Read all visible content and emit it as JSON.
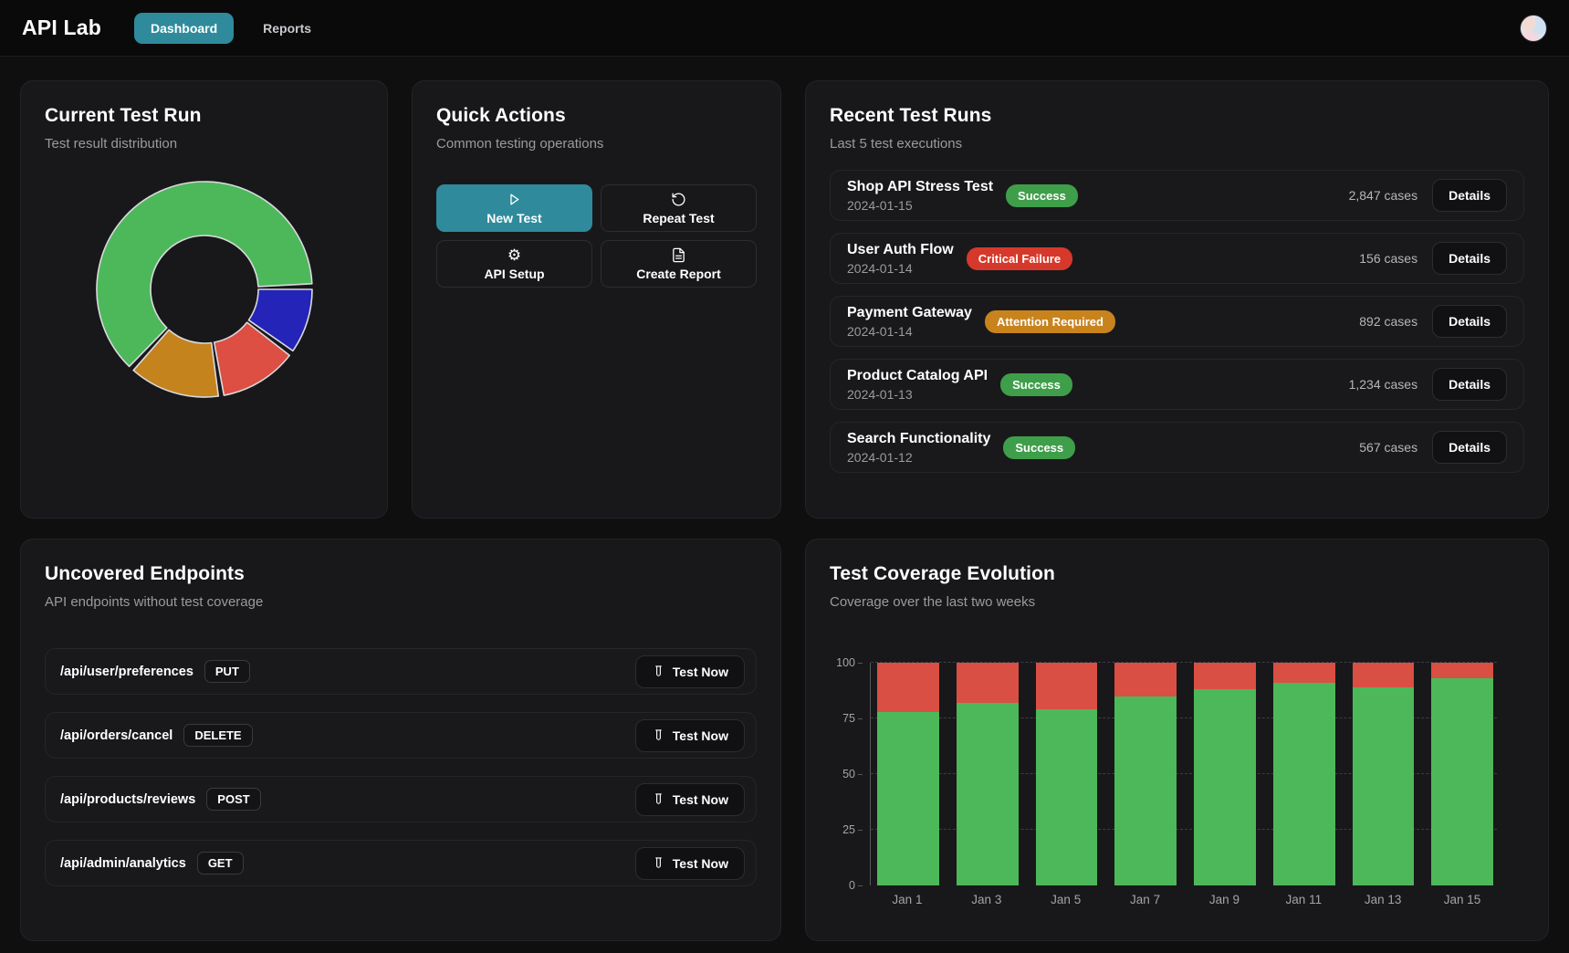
{
  "header": {
    "brand": "API Lab",
    "tabs": [
      {
        "label": "Dashboard",
        "active": true
      },
      {
        "label": "Reports",
        "active": false
      }
    ]
  },
  "cards": {
    "current": {
      "title": "Current Test Run",
      "subtitle": "Test result distribution"
    },
    "quick": {
      "title": "Quick Actions",
      "subtitle": "Common testing operations",
      "buttons": [
        {
          "label": "New Test",
          "icon": "play",
          "primary": true
        },
        {
          "label": "Repeat Test",
          "icon": "repeat",
          "primary": false
        },
        {
          "label": "API Setup",
          "icon": "gear",
          "primary": false
        },
        {
          "label": "Create Report",
          "icon": "document",
          "primary": false
        }
      ]
    },
    "recent": {
      "title": "Recent Test Runs",
      "subtitle": "Last 5 test executions",
      "details_label": "Details",
      "runs": [
        {
          "name": "Shop API Stress Test",
          "date": "2024-01-15",
          "status": "Success",
          "status_type": "success",
          "cases": "2,847 cases"
        },
        {
          "name": "User Auth Flow",
          "date": "2024-01-14",
          "status": "Critical Failure",
          "status_type": "critical",
          "cases": "156 cases"
        },
        {
          "name": "Payment Gateway",
          "date": "2024-01-14",
          "status": "Attention Required",
          "status_type": "warning",
          "cases": "892 cases"
        },
        {
          "name": "Product Catalog API",
          "date": "2024-01-13",
          "status": "Success",
          "status_type": "success",
          "cases": "1,234 cases"
        },
        {
          "name": "Search Functionality",
          "date": "2024-01-12",
          "status": "Success",
          "status_type": "success",
          "cases": "567 cases"
        }
      ]
    },
    "uncovered": {
      "title": "Uncovered Endpoints",
      "subtitle": "API endpoints without test coverage",
      "test_now_label": "Test Now",
      "endpoints": [
        {
          "path": "/api/user/preferences",
          "method": "PUT"
        },
        {
          "path": "/api/orders/cancel",
          "method": "DELETE"
        },
        {
          "path": "/api/products/reviews",
          "method": "POST"
        },
        {
          "path": "/api/admin/analytics",
          "method": "GET"
        }
      ]
    },
    "coverage": {
      "title": "Test Coverage Evolution",
      "subtitle": "Coverage over the last two weeks"
    }
  },
  "chart_data": [
    {
      "type": "pie",
      "variant": "donut",
      "title": "Current Test Run",
      "legend": false,
      "start_angle": "3-oclock",
      "direction": "clockwise",
      "segments": [
        {
          "label": "blue",
          "value": 10,
          "color": "#2424b8"
        },
        {
          "label": "red",
          "value": 12,
          "color": "#dc4f42"
        },
        {
          "label": "orange",
          "value": 14,
          "color": "#c5831e"
        },
        {
          "label": "green",
          "value": 64,
          "color": "#4cb85a"
        }
      ]
    },
    {
      "type": "bar",
      "stacked": true,
      "title": "Test Coverage Evolution",
      "categories": [
        "Jan 1",
        "Jan 3",
        "Jan 5",
        "Jan 7",
        "Jan 9",
        "Jan 11",
        "Jan 13",
        "Jan 15"
      ],
      "series": [
        {
          "name": "covered",
          "color": "#4cb85a",
          "values": [
            78,
            82,
            79,
            85,
            88,
            91,
            89,
            93
          ]
        },
        {
          "name": "uncovered",
          "color": "#d94f43",
          "values": [
            22,
            18,
            21,
            15,
            12,
            9,
            11,
            7
          ]
        }
      ],
      "ylim": [
        0,
        100
      ],
      "yticks": [
        0,
        25,
        50,
        75,
        100
      ],
      "grid": "dashed-horizontal",
      "legend": false
    }
  ],
  "colors": {
    "accent_teal": "#2f8b9c",
    "success_green": "#3f9e4a",
    "critical_red": "#d6392b",
    "warning_orange": "#c8831d",
    "chart_green": "#4cb85a",
    "chart_red": "#d94f43",
    "chart_blue": "#2424b8",
    "chart_orange": "#c5831e",
    "page_bg": "#0f0f10",
    "card_bg": "#18181a"
  }
}
